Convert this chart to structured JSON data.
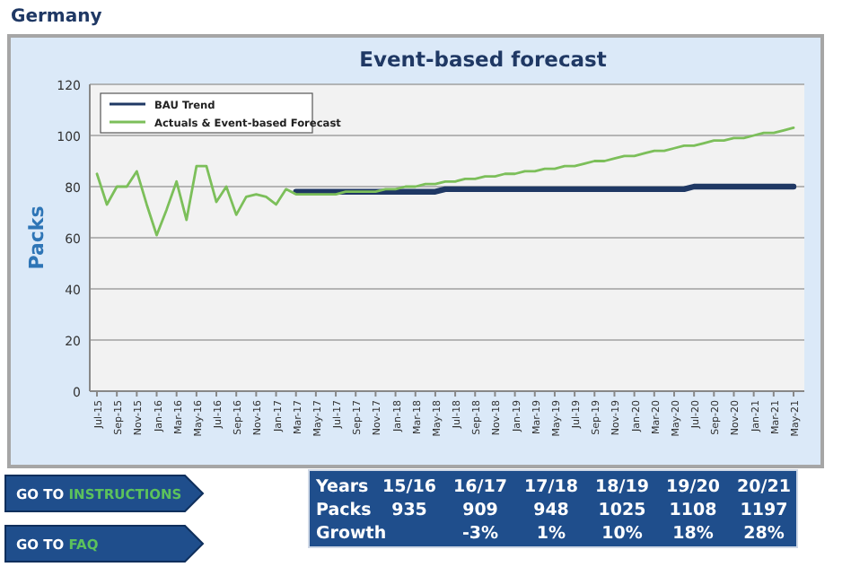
{
  "chart_data": [
    {
      "type": "line",
      "title": "Event-based forecast",
      "ylabel": "Packs",
      "annotations": [
        "Germany"
      ],
      "categories": [
        "Jul-15",
        null,
        "Sep-15",
        null,
        "Nov-15",
        null,
        "Jan-16",
        null,
        "Mar-16",
        null,
        "May-16",
        null,
        "Jul-16",
        null,
        "Sep-16",
        null,
        "Nov-16",
        null,
        "Jan-17",
        null,
        "Mar-17",
        null,
        "May-17",
        null,
        "Jul-17",
        null,
        "Sep-17",
        null,
        "Nov-17",
        null,
        "Jan-18",
        null,
        "Mar-18",
        null,
        "May-18",
        null,
        "Jul-18",
        null,
        "Sep-18",
        null,
        "Nov-18",
        null,
        "Jan-19",
        null,
        "Mar-19",
        null,
        "May-19",
        null,
        "Jul-19",
        null,
        "Sep-19",
        null,
        "Nov-19",
        null,
        "Jan-20",
        null,
        "Mar-20",
        null,
        "May-20",
        null,
        "Jul-20",
        null,
        "Sep-20",
        null,
        "Nov-20",
        null,
        "Jan-21",
        null,
        "Mar-21",
        null,
        "May-21"
      ],
      "series": [
        {
          "name": "BAU Trend",
          "color": "#1f3864",
          "values": [
            null,
            null,
            null,
            null,
            null,
            null,
            null,
            null,
            null,
            null,
            null,
            null,
            null,
            null,
            null,
            null,
            null,
            null,
            null,
            null,
            78,
            78,
            78,
            78,
            78,
            78,
            78,
            78,
            78,
            78,
            78,
            78,
            78,
            78,
            78,
            79,
            79,
            79,
            79,
            79,
            79,
            79,
            79,
            79,
            79,
            79,
            79,
            79,
            79,
            79,
            79,
            79,
            79,
            79,
            79,
            79,
            79,
            79,
            79,
            79,
            80,
            80,
            80,
            80,
            80,
            80,
            80,
            80,
            80,
            80,
            80
          ]
        },
        {
          "name": "Actuals & Event-based Forecast",
          "color": "#7cbf5a",
          "values": [
            85,
            73,
            80,
            80,
            86,
            73,
            61,
            71,
            82,
            67,
            88,
            88,
            74,
            80,
            69,
            76,
            77,
            76,
            73,
            79,
            77,
            77,
            77,
            77,
            77,
            78,
            78,
            78,
            78,
            79,
            79,
            80,
            80,
            81,
            81,
            82,
            82,
            83,
            83,
            84,
            84,
            85,
            85,
            86,
            86,
            87,
            87,
            88,
            88,
            89,
            90,
            90,
            91,
            92,
            92,
            93,
            94,
            94,
            95,
            96,
            96,
            97,
            98,
            98,
            99,
            99,
            100,
            101,
            101,
            102,
            103
          ]
        }
      ],
      "ylim": [
        0,
        120
      ],
      "yticks": [
        0,
        20,
        40,
        60,
        80,
        100,
        120
      ],
      "grid": "y",
      "legend": "top left",
      "line_style": "solid",
      "marker": "none"
    },
    {
      "type": "other",
      "categories": [
        "15/16",
        "16/17",
        "17/18",
        "18/19",
        "19/20",
        "20/21"
      ],
      "values": [
        935,
        909,
        948,
        1025,
        1108,
        1197
      ],
      "data_labels": true,
      "annotations": [
        "Years",
        "Packs",
        "Growth",
        "-3%",
        "1%",
        "10%",
        "18%",
        "28%"
      ]
    },
    {
      "type": "other",
      "annotations": [
        "GO TO INSTRUCTIONS",
        "GO TO FAQ"
      ]
    }
  ]
}
